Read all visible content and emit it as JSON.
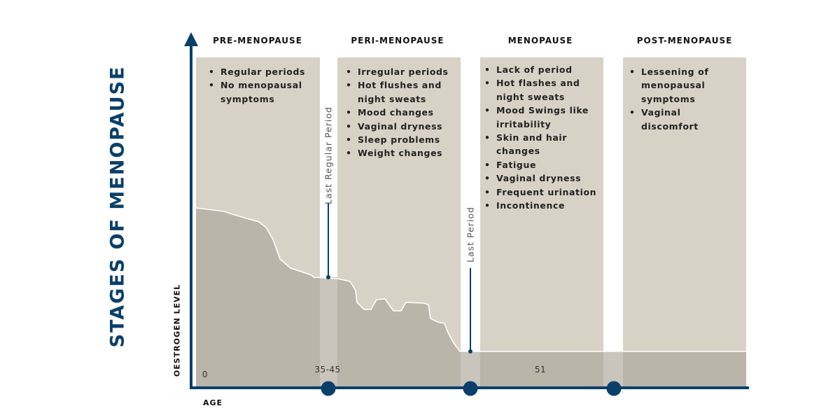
{
  "title": "STAGES OF MENOPAUSE",
  "y_axis_label": "OESTROGEN LEVEL",
  "x_axis_label": "AGE",
  "colors": {
    "axis": "#0b3f6b",
    "panel": "#d8d2c6",
    "curve_fill": "#bab4a9",
    "gap_fill": "#c9c4bc"
  },
  "stages": [
    {
      "title": "PRE-MENOPAUSE",
      "items": [
        "Regular periods",
        "No menopausal symptoms"
      ]
    },
    {
      "title": "PERI-MENOPAUSE",
      "items": [
        "Irregular periods",
        "Hot flushes and night sweats",
        "Mood changes",
        "Vaginal dryness",
        "Sleep problems",
        "Weight changes"
      ]
    },
    {
      "title": "MENOPAUSE",
      "items": [
        "Lack of period",
        "Hot flashes and night sweats",
        "Mood Swings like irritability",
        "Skin and hair changes",
        "Fatigue",
        "Vaginal dryness",
        "Frequent urination",
        "Incontinence"
      ]
    },
    {
      "title": "POST-MENOPAUSE",
      "items": [
        "Lessening of menopausal symptoms",
        "Vaginal discomfort"
      ]
    }
  ],
  "markers": [
    {
      "label": "Last Regular Period"
    },
    {
      "label": "Last Period"
    }
  ],
  "ages": [
    "0",
    "35-45",
    "51"
  ]
}
